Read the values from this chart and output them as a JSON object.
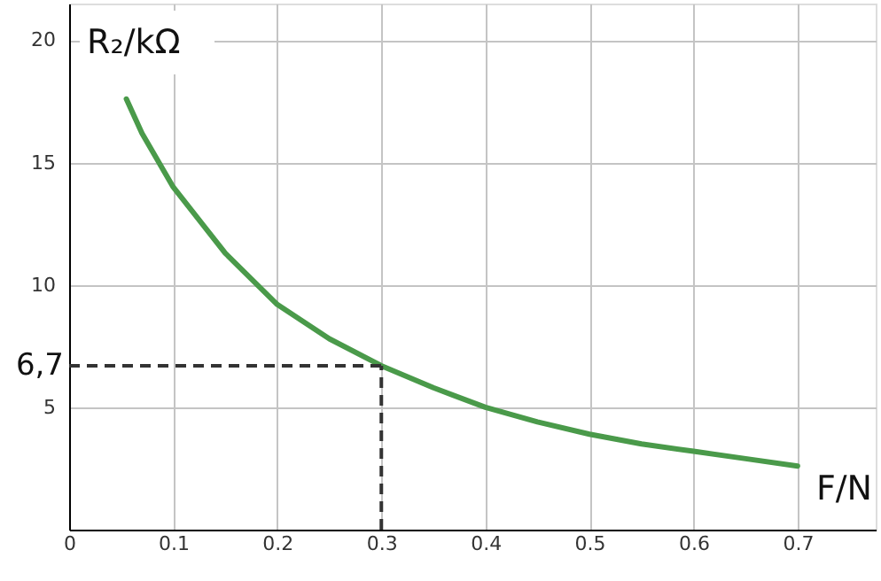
{
  "chart_data": {
    "type": "line",
    "xlabel": "F/N",
    "ylabel": "R₂/kΩ",
    "x": [
      0.055,
      0.07,
      0.1,
      0.15,
      0.2,
      0.25,
      0.3,
      0.35,
      0.4,
      0.45,
      0.5,
      0.55,
      0.6,
      0.65,
      0.7
    ],
    "series": [
      {
        "color": "#4a9a4a",
        "values": [
          17.6,
          16.2,
          14.0,
          11.3,
          9.2,
          7.8,
          6.7,
          5.8,
          5.0,
          4.4,
          3.9,
          3.5,
          3.2,
          2.9,
          2.6
        ]
      }
    ],
    "xlim": [
      0,
      0.775
    ],
    "ylim": [
      0,
      21.5
    ],
    "xticks": [
      0,
      0.1,
      0.2,
      0.3,
      0.4,
      0.5,
      0.6,
      0.7
    ],
    "yticks": [
      5,
      10,
      15,
      20
    ],
    "ref_lines": [
      {
        "axis": "y",
        "value": 6.7,
        "label": "6,7",
        "color": "#333333",
        "line_style": "dashed"
      },
      {
        "axis": "x",
        "value": 0.3,
        "color": "#333333",
        "line_style": "dashed"
      }
    ],
    "grid": true,
    "marker": "none",
    "line_style": "solid"
  }
}
